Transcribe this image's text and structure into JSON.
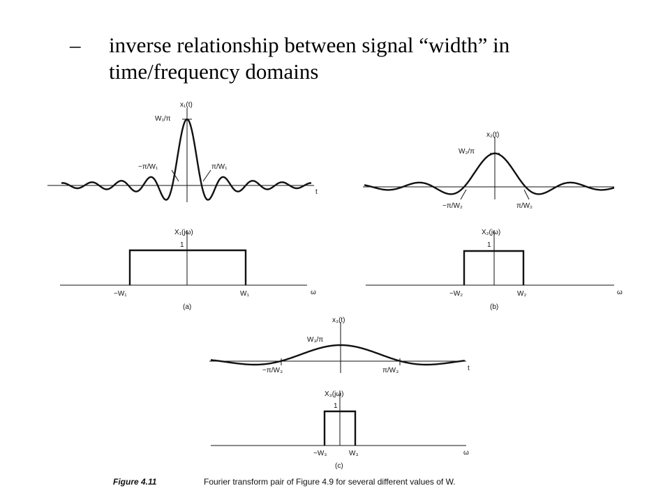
{
  "bullet": {
    "dash": "–",
    "line1": "inverse relationship between signal “width” in",
    "line2": "time/frequency domains"
  },
  "figure": {
    "caption_number": "Figure 4.11",
    "caption_text": "Fourier transform pair of Figure 4.9 for several different values of W.",
    "panels": [
      {
        "id": "a",
        "sub_label": "(a)",
        "time_plot": {
          "title": "x₁(t)",
          "peak": "W₁/π",
          "zero_left": "−π/W₁",
          "zero_right": "π/W₁",
          "axis": "t"
        },
        "freq_plot": {
          "title": "X₁(jω)",
          "height": "1",
          "band_left": "−W₁",
          "band_right": "W₁",
          "axis": "ω"
        }
      },
      {
        "id": "b",
        "sub_label": "(b)",
        "time_plot": {
          "title": "x₂(t)",
          "peak": "W₂/π",
          "zero_left": "−π/W₂",
          "zero_right": "π/W₂",
          "axis": ""
        },
        "freq_plot": {
          "title": "X₂(jω)",
          "height": "1",
          "band_left": "−W₂",
          "band_right": "W₂",
          "axis": "ω"
        }
      },
      {
        "id": "c",
        "sub_label": "(c)",
        "time_plot": {
          "title": "x₃(t)",
          "peak": "W₃/π",
          "zero_left": "−π/W₃",
          "zero_right": "π/W₃",
          "axis": "t"
        },
        "freq_plot": {
          "title": "X₃(jω)",
          "height": "1",
          "band_left": "−W₃",
          "band_right": "W₃",
          "axis": "ω"
        }
      }
    ]
  },
  "colors": {
    "ink": "#111111",
    "background": "#ffffff"
  }
}
